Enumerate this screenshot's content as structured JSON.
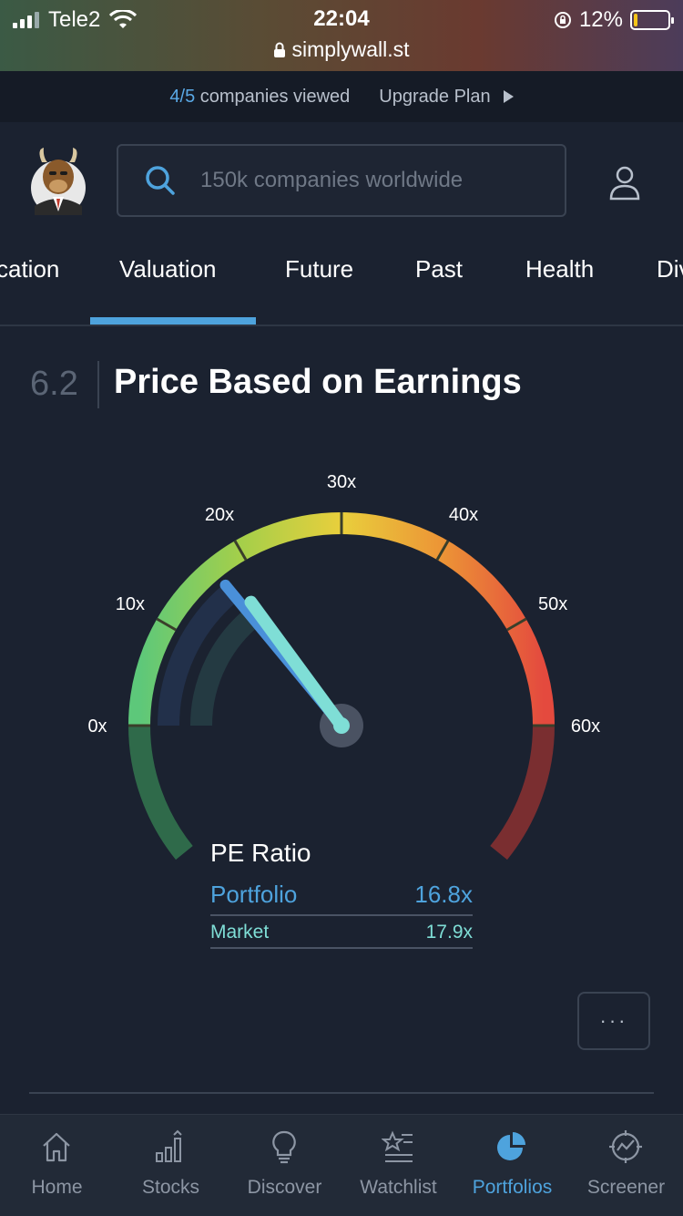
{
  "status_bar": {
    "carrier": "Tele2",
    "time": "22:04",
    "url": "simplywall.st",
    "battery_text": "12%",
    "battery_level": 0.12
  },
  "banner": {
    "count": "4/5",
    "viewed_label": "companies viewed",
    "upgrade_label": "Upgrade Plan"
  },
  "search": {
    "placeholder": "150k companies worldwide"
  },
  "tabs": [
    {
      "label": "cation"
    },
    {
      "label": "Valuation",
      "active": true
    },
    {
      "label": "Future"
    },
    {
      "label": "Past"
    },
    {
      "label": "Health"
    },
    {
      "label": "Div"
    }
  ],
  "section": {
    "number": "6.2",
    "title": "Price Based on Earnings"
  },
  "gauge": {
    "min": 0,
    "max": 60,
    "tick_labels": [
      "0x",
      "10x",
      "20x",
      "30x",
      "40x",
      "50x",
      "60x"
    ],
    "portfolio_value": 16.8,
    "market_value": 17.9,
    "colors": {
      "portfolio": "#4a90d9",
      "market": "#7fded6"
    }
  },
  "pe_ratio": {
    "title": "PE Ratio",
    "portfolio_label": "Portfolio",
    "portfolio_value": "16.8x",
    "market_label": "Market",
    "market_value": "17.9x"
  },
  "more_button": {
    "label": "···"
  },
  "bottom_nav": [
    {
      "label": "Home",
      "icon": "home-icon"
    },
    {
      "label": "Stocks",
      "icon": "stocks-icon"
    },
    {
      "label": "Discover",
      "icon": "lightbulb-icon"
    },
    {
      "label": "Watchlist",
      "icon": "watchlist-icon"
    },
    {
      "label": "Portfolios",
      "icon": "pie-chart-icon",
      "active": true
    },
    {
      "label": "Screener",
      "icon": "screener-icon"
    }
  ]
}
